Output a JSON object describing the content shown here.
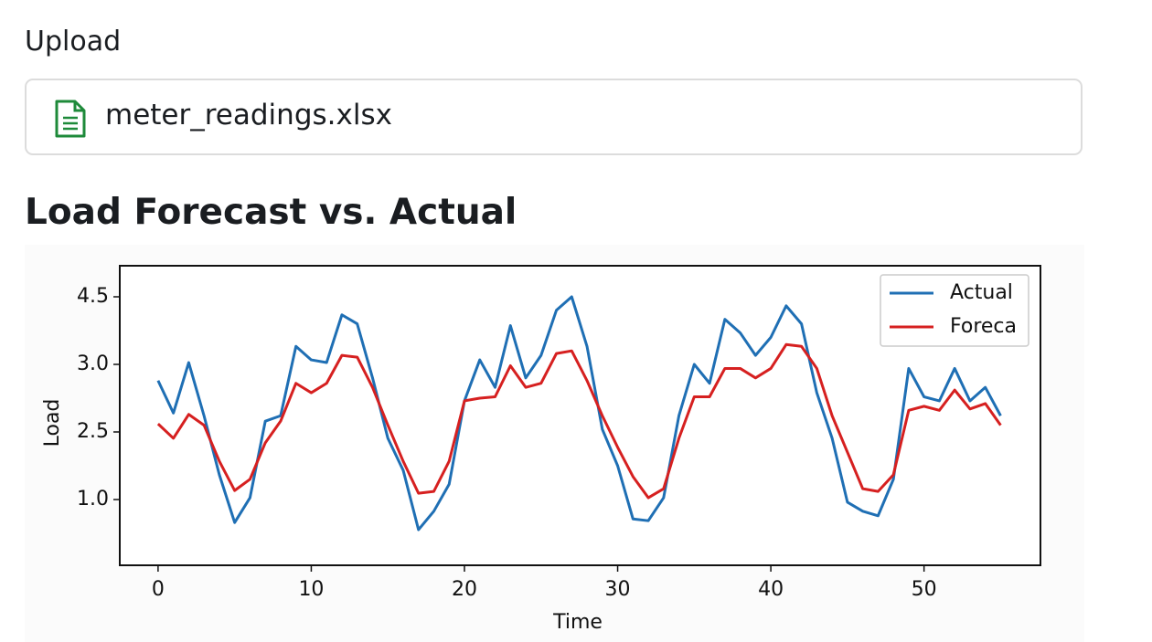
{
  "upload": {
    "label": "Upload",
    "filename": "meter_readings.xlsx"
  },
  "heading": "Load Forecast vs. Actual",
  "chart_data": {
    "type": "line",
    "xlabel": "Time",
    "ylabel": "Load",
    "x": [
      0,
      1,
      2,
      3,
      4,
      5,
      6,
      7,
      8,
      9,
      10,
      11,
      12,
      13,
      14,
      15,
      16,
      17,
      18,
      19,
      20,
      21,
      22,
      23,
      24,
      25,
      26,
      27,
      28,
      29,
      30,
      31,
      32,
      33,
      34,
      35,
      36,
      37,
      38,
      39,
      40,
      41,
      42,
      43,
      44,
      45,
      46,
      47,
      48,
      49,
      50,
      51,
      52,
      53,
      54,
      55
    ],
    "series": [
      {
        "name": "Actual",
        "color": "#1f6fb4",
        "values": [
          2.88,
          2.64,
          3.04,
          2.62,
          1.55,
          0.49,
          1.04,
          2.58,
          2.62,
          3.4,
          3.1,
          3.04,
          4.1,
          3.9,
          2.9,
          2.36,
          1.65,
          0.33,
          0.74,
          1.34,
          2.73,
          3.1,
          2.83,
          3.86,
          2.9,
          3.2,
          4.2,
          4.5,
          3.4,
          2.52,
          1.75,
          0.57,
          0.53,
          1.04,
          2.62,
          3.0,
          2.86,
          4.0,
          3.7,
          3.2,
          3.6,
          4.3,
          3.9,
          2.79,
          2.36,
          0.94,
          0.74,
          0.64,
          1.45,
          2.97,
          2.76,
          2.73,
          2.97,
          2.73,
          2.83,
          2.62
        ]
      },
      {
        "name": "Foreca",
        "color": "#d62020",
        "values": [
          2.56,
          2.36,
          2.63,
          2.55,
          1.85,
          1.2,
          1.45,
          2.26,
          2.58,
          2.86,
          2.79,
          2.86,
          3.2,
          3.16,
          2.83,
          2.55,
          1.85,
          1.14,
          1.18,
          1.85,
          2.73,
          2.75,
          2.76,
          2.99,
          2.83,
          2.86,
          3.24,
          3.3,
          2.88,
          2.62,
          2.16,
          1.51,
          1.04,
          1.24,
          2.36,
          2.76,
          2.76,
          2.97,
          2.97,
          2.9,
          2.97,
          3.44,
          3.4,
          2.97,
          2.62,
          2.05,
          1.24,
          1.18,
          1.55,
          2.66,
          2.69,
          2.66,
          2.81,
          2.67,
          2.71,
          2.55
        ]
      }
    ],
    "xlim": [
      -2.5,
      57.6
    ],
    "xticks": [
      0,
      10,
      20,
      30,
      40,
      50
    ],
    "ylim": [
      -0.46,
      5.18
    ],
    "yticks": [
      4.5,
      {
        "value": 3,
        "label": "3.0"
      },
      2.5,
      {
        "value": 1,
        "label": "1.0"
      }
    ],
    "legend": "upper-right",
    "grid": false
  }
}
